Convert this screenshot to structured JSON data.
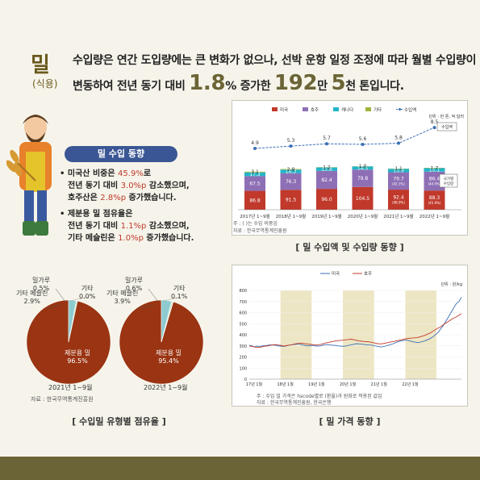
{
  "header": {
    "item": "밀",
    "item_sub": "(식용)",
    "line1": "수입량은 연간 도입량에는 큰 변화가 없으나, 선박 운항 일정 조정에 따라 월별 수입량이",
    "line2_a": "변동하여 전년 동기 대비",
    "line2_pct": "1.8",
    "line2_pct_unit": "%",
    "line2_b": "증가한",
    "line2_num1": "192",
    "line2_unit1": "만",
    "line2_num2": "5",
    "line2_unit2": "천 톤",
    "line2_end": "입니다."
  },
  "info": {
    "title": "밀 수입 동향",
    "p1_a": "• 미국산 비중은",
    "p1_v1": "45.9%",
    "p1_b": "로",
    "p1_c": "전년 동기 대비",
    "p1_v2": "3.0%p",
    "p1_d": "감소했으며,",
    "p1_e": "호주산은",
    "p1_v3": "2.8%p",
    "p1_f": "증가했습니다.",
    "p2_a": "• 제분용 밀 점유율은",
    "p2_b": "전년 동기 대비",
    "p2_v1": "1.1%p",
    "p2_c": "감소했으며,",
    "p2_d": "기타 메슬린은",
    "p2_v2": "1.0%p",
    "p2_e": "증가했습니다."
  },
  "colors": {
    "us": "#c0392b",
    "au": "#8e6fb5",
    "ca": "#23b5c8",
    "other": "#9fb43a",
    "volume": "#3a6fb5",
    "pie_main": "#9a3412",
    "pie_meslin": "#8ecbd0",
    "pie_flour": "#cfe6c8",
    "shade": "#ede6c4"
  },
  "chart1": {
    "unit": "단위 : 만 톤, 억 달러",
    "note1": "주 : (   )는 수입 비중임",
    "note2": "자료 : 한국무역통계진흥원",
    "caption": "[ 밀 수입액 및 수입량 동향 ]",
    "badge_value": "수입액",
    "badge_share": "국가별 수입량",
    "legend": [
      "미국",
      "호주",
      "캐나다",
      "기타",
      "수입액"
    ]
  },
  "chart2": {
    "left_period": "2021년 1~9월",
    "right_period": "2022년 1~9월",
    "source": "자료 : 한국무역통계진흥원",
    "caption": "[ 수입밀 유형별 점유율 ]",
    "left": {
      "flour_label": "밀가루",
      "flour_value": "0.5%",
      "other_label": "기타",
      "other_value": "0.0%",
      "meslin_label": "기타 메슬린",
      "meslin_value": "2.9%",
      "main_label": "제분용 밀",
      "main_value": "96.5%"
    },
    "right": {
      "flour_label": "밀가루",
      "flour_value": "0.6%",
      "other_label": "기타",
      "other_value": "0.1%",
      "meslin_label": "기타 메슬린",
      "meslin_value": "3.9%",
      "main_label": "제분용 밀",
      "main_value": "95.4%"
    }
  },
  "chart3": {
    "unit": "단위 : 원/kg",
    "legend": [
      "미국",
      "호주"
    ],
    "note1": "주 : 수입 밀 가격은 hscode별로 (환율)과 원화로 적용된 값임",
    "note2": "자료 : 한국무역통계진흥원, 한국은행",
    "caption": "[ 밀 가격 동향 ]"
  },
  "chart_data": [
    {
      "type": "bar",
      "stacked": true,
      "categories": [
        "2017년 1~9월",
        "2018년 1~9월",
        "2019년 1~9월",
        "2020년 1~9월",
        "2021년 1~9월",
        "2022년 1~9월"
      ],
      "series": [
        {
          "name": "미국",
          "values": [
            86.8,
            91.5,
            96.0,
            104.5,
            92.4,
            88.3
          ],
          "labels": [
            "86.8",
            "91.5",
            "96.0",
            "104.5",
            "92.4\n(48.9%)",
            "88.3\n(45.9%)"
          ]
        },
        {
          "name": "호주",
          "values": [
            67.5,
            76.3,
            82.4,
            79.8,
            79.7,
            86.4
          ],
          "labels": [
            "67.5",
            "76.3",
            "82.4",
            "79.8",
            "79.7\n(42.1%)",
            "86.4\n(44.9%)"
          ]
        },
        {
          "name": "캐나다",
          "values": [
            17.3,
            16.3,
            15.8,
            14.5,
            15.9,
            16.1
          ],
          "labels": [
            "17.3",
            "16.3",
            "15.8",
            "14.5",
            "15.9",
            "16.1"
          ]
        },
        {
          "name": "기타",
          "values": [
            3.1,
            2.9,
            1.2,
            1.0,
            1.1,
            1.7
          ],
          "labels": [
            "3.1",
            "2.9",
            "1.2",
            "1.0",
            "1.1",
            "1.7"
          ]
        }
      ],
      "line": {
        "name": "수입액",
        "values": [
          4.9,
          5.3,
          5.7,
          5.6,
          5.8,
          8.5
        ]
      }
    },
    {
      "type": "pie",
      "title": "2021년 1~9월",
      "slices": [
        {
          "name": "제분용 밀",
          "value": 96.5
        },
        {
          "name": "기타 메슬린",
          "value": 2.9
        },
        {
          "name": "밀가루",
          "value": 0.5
        },
        {
          "name": "기타",
          "value": 0.0
        }
      ]
    },
    {
      "type": "pie",
      "title": "2022년 1~9월",
      "slices": [
        {
          "name": "제분용 밀",
          "value": 95.4
        },
        {
          "name": "기타 메슬린",
          "value": 3.9
        },
        {
          "name": "밀가루",
          "value": 0.6
        },
        {
          "name": "기타",
          "value": 0.1
        }
      ]
    },
    {
      "type": "line",
      "ylim": [
        0,
        800
      ],
      "yticks": [
        0,
        100,
        200,
        300,
        400,
        500,
        600,
        700,
        800
      ],
      "xticks": [
        "17년 1월",
        "18년 1월",
        "19년 1월",
        "20년 1월",
        "21년 1월",
        "22년 1월"
      ],
      "shaded_years": [
        "18년 1월",
        "20년 1월",
        "22년 1월"
      ],
      "series": [
        {
          "name": "미국",
          "values": [
            305,
            300,
            290,
            298,
            295,
            300,
            302,
            305,
            310,
            308,
            306,
            300,
            298,
            295,
            300,
            305,
            310,
            312,
            315,
            318,
            310,
            305,
            300,
            302,
            305,
            300,
            298,
            300,
            305,
            310,
            312,
            308,
            306,
            304,
            300,
            298,
            296,
            300,
            305,
            310,
            315,
            320,
            318,
            315,
            312,
            310,
            308,
            306,
            300,
            296,
            290,
            292,
            298,
            305,
            312,
            320,
            330,
            340,
            345,
            350,
            352,
            348,
            340,
            335,
            330,
            332,
            338,
            345,
            355,
            365,
            380,
            400,
            420,
            450,
            480,
            520,
            560,
            600,
            640,
            680,
            700,
            740
          ]
        },
        {
          "name": "호주",
          "values": [
            300,
            295,
            290,
            285,
            288,
            292,
            298,
            300,
            305,
            310,
            312,
            308,
            305,
            300,
            302,
            306,
            310,
            315,
            320,
            322,
            325,
            320,
            318,
            315,
            312,
            310,
            308,
            312,
            318,
            325,
            330,
            335,
            340,
            345,
            348,
            350,
            352,
            355,
            358,
            360,
            355,
            350,
            345,
            342,
            340,
            338,
            335,
            330,
            325,
            320,
            318,
            320,
            325,
            330,
            335,
            340,
            345,
            350,
            355,
            360,
            365,
            368,
            370,
            372,
            375,
            380,
            388,
            395,
            405,
            415,
            430,
            445,
            460,
            470,
            490,
            505,
            520,
            535,
            550,
            560,
            575,
            590
          ]
        }
      ]
    }
  ]
}
